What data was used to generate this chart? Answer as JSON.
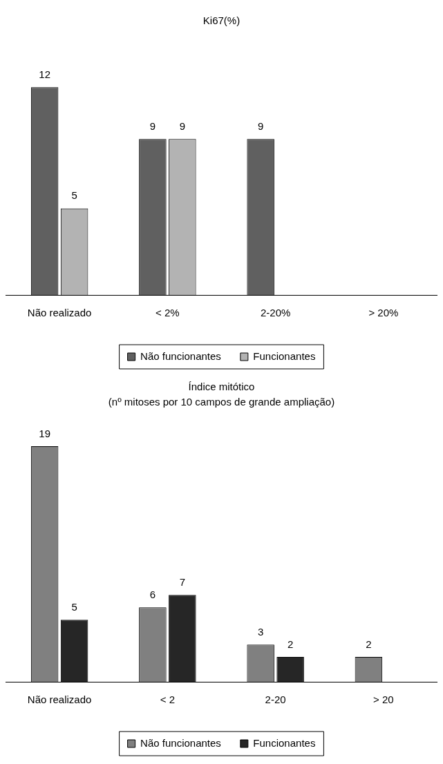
{
  "chart_data": [
    {
      "type": "bar",
      "title": "Ki67(%)",
      "categories": [
        "Não realizado",
        "< 2%",
        "2-20%",
        "> 20%"
      ],
      "series": [
        {
          "name": "Não funcionantes",
          "color": "#606060",
          "values": [
            12,
            9,
            9,
            null
          ]
        },
        {
          "name": "Funcionantes",
          "color": "#b3b3b3",
          "values": [
            5,
            9,
            null,
            null
          ]
        }
      ],
      "data_labels": true,
      "grid": false,
      "legend": "bottom",
      "tick_labels": "x"
    },
    {
      "type": "bar",
      "title": "Índice mitótico",
      "subtitle": "(nº mitoses por 10 campos de grande ampliação)",
      "categories": [
        "Não realizado",
        "< 2",
        "2-20",
        "> 20"
      ],
      "series": [
        {
          "name": "Não funcionantes",
          "color": "#808080",
          "values": [
            19,
            6,
            3,
            2
          ]
        },
        {
          "name": "Funcionantes",
          "color": "#262626",
          "values": [
            5,
            7,
            2,
            null
          ]
        }
      ],
      "data_labels": true,
      "grid": false,
      "legend": "bottom",
      "tick_labels": "x"
    }
  ]
}
